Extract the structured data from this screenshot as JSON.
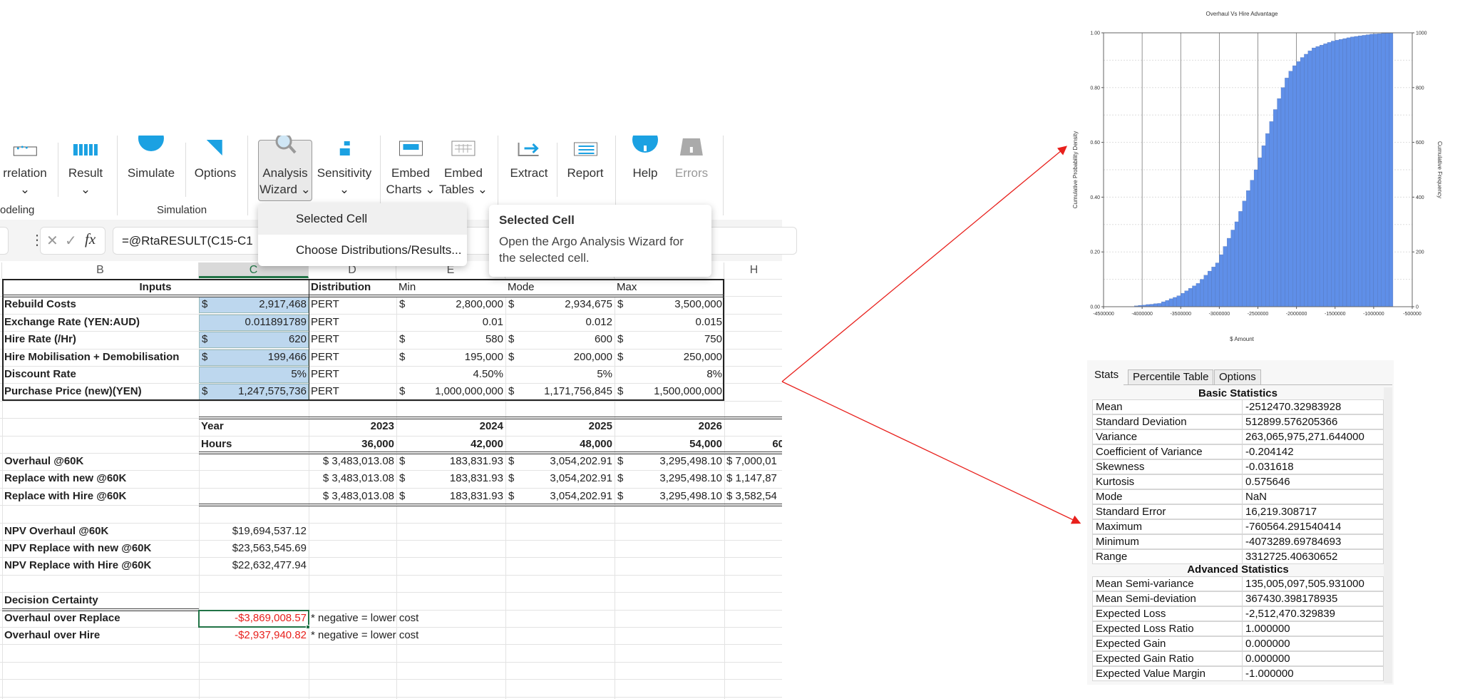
{
  "ribbon": {
    "items": [
      {
        "key": "correlation",
        "l1": "rrelation",
        "l2": "⌄",
        "icon": "correlation-icon"
      },
      {
        "key": "result",
        "l1": "Result",
        "l2": "⌄",
        "icon": "result-bars-icon"
      },
      {
        "key": "simulate",
        "l1": "Simulate",
        "l2": "",
        "icon": "simulate-icon"
      },
      {
        "key": "options",
        "l1": "Options",
        "l2": "",
        "icon": "options-icon"
      },
      {
        "key": "analysis-wizard",
        "l1": "Analysis",
        "l2": "Wizard ⌄",
        "icon": "magnifier-icon"
      },
      {
        "key": "sensitivity",
        "l1": "Sensitivity",
        "l2": "⌄",
        "icon": "sensitivity-icon"
      },
      {
        "key": "embed-charts",
        "l1": "Embed",
        "l2": "Charts ⌄",
        "icon": "embed-chart-icon"
      },
      {
        "key": "embed-tables",
        "l1": "Embed",
        "l2": "Tables ⌄",
        "icon": "embed-table-icon"
      },
      {
        "key": "extract",
        "l1": "Extract",
        "l2": "",
        "icon": "extract-icon"
      },
      {
        "key": "report",
        "l1": "Report",
        "l2": "",
        "icon": "report-icon"
      },
      {
        "key": "help",
        "l1": "Help",
        "l2": "",
        "icon": "help-icon"
      },
      {
        "key": "errors",
        "l1": "Errors",
        "l2": "",
        "icon": "errors-icon",
        "disabled": true
      }
    ],
    "groups": {
      "modeling": "odeling",
      "simulation": "Simulation"
    }
  },
  "formula_bar": {
    "formula": "=@RtaRESULT(C15-C1",
    "fx": "fx",
    "cancel": "✕",
    "enter": "✓"
  },
  "dropdown": {
    "items": [
      "Selected Cell",
      "Choose Distributions/Results..."
    ]
  },
  "tooltip": {
    "title": "Selected Cell",
    "line1": "Open the Argo Analysis Wizard for",
    "line2": "the selected cell."
  },
  "sheet": {
    "columns": [
      "B",
      "C",
      "D",
      "E",
      "H"
    ],
    "selected_column": "C",
    "inputs": {
      "header": {
        "label": "Inputs",
        "distribution": "Distribution",
        "min": "Min",
        "mode": "Mode",
        "max": "Max"
      },
      "rows": [
        {
          "label": "Rebuild Costs",
          "value": [
            "$",
            "2,917,468"
          ],
          "dist": "PERT",
          "min": [
            "$",
            "2,800,000"
          ],
          "mode": [
            "$",
            "2,934,675"
          ],
          "max": [
            "$",
            "3,500,000"
          ]
        },
        {
          "label": "Exchange Rate (YEN:AUD)",
          "value": [
            "",
            "0.011891789"
          ],
          "dist": "PERT",
          "min": [
            "",
            "0.01"
          ],
          "mode": [
            "",
            "0.012"
          ],
          "max": [
            "",
            "0.015"
          ]
        },
        {
          "label": "Hire Rate (/Hr)",
          "value": [
            "$",
            "620"
          ],
          "dist": "PERT",
          "min": [
            "$",
            "580"
          ],
          "mode": [
            "$",
            "600"
          ],
          "max": [
            "$",
            "750"
          ]
        },
        {
          "label": "Hire Mobilisation + Demobilisation",
          "value": [
            "$",
            "199,466"
          ],
          "dist": "PERT",
          "min": [
            "$",
            "195,000"
          ],
          "mode": [
            "$",
            "200,000"
          ],
          "max": [
            "$",
            "250,000"
          ]
        },
        {
          "label": "Discount Rate",
          "value": [
            "",
            "5%"
          ],
          "dist": "PERT",
          "min": [
            "",
            "4.50%"
          ],
          "mode": [
            "",
            "5%"
          ],
          "max": [
            "",
            "8%"
          ]
        },
        {
          "label": "Purchase Price (new)(YEN)",
          "value": [
            "$",
            "1,247,575,736"
          ],
          "dist": "PERT",
          "min": [
            "$",
            "1,000,000,000"
          ],
          "mode": [
            "$",
            "1,171,756,845"
          ],
          "max": [
            "$",
            "1,500,000,000"
          ]
        }
      ]
    },
    "schedule": {
      "year_label": "Year",
      "hours_label": "Hours",
      "years": [
        "2023",
        "2024",
        "2025",
        "2026"
      ],
      "hours": [
        "36,000",
        "42,000",
        "48,000",
        "54,000",
        "60"
      ],
      "rows": [
        {
          "label": "Overhaul @60K",
          "d": "$ 3,483,013.08",
          "e": "183,831.93",
          "f": "3,054,202.91",
          "g": "3,295,498.10",
          "h": "$ 7,000,01"
        },
        {
          "label": "Replace with new @60K",
          "d": "$ 3,483,013.08",
          "e": "183,831.93",
          "f": "3,054,202.91",
          "g": "3,295,498.10",
          "h": "$ 1,147,87"
        },
        {
          "label": "Replace with Hire @60K",
          "d": "$ 3,483,013.08",
          "e": "183,831.93",
          "f": "3,054,202.91",
          "g": "3,295,498.10",
          "h": "$ 3,582,54"
        }
      ],
      "currency": "$"
    },
    "npv": [
      {
        "label": "NPV Overhaul @60K",
        "value": "$19,694,537.12"
      },
      {
        "label": "NPV Replace with new @60K",
        "value": "$23,563,545.69"
      },
      {
        "label": "NPV Replace with Hire @60K",
        "value": "$22,632,477.94"
      }
    ],
    "decision": {
      "title": "Decision Certainty",
      "rows": [
        {
          "label": "Overhaul over Replace",
          "value": "-$3,869,008.57",
          "note": "* negative = lower cost"
        },
        {
          "label": "Overhaul over Hire",
          "value": "-$2,937,940.82",
          "note": "* negative = lower cost"
        }
      ]
    }
  },
  "chart_data": {
    "type": "bar",
    "title": "Overhaul Vs Hire Advantage",
    "xlabel": "$ Amount",
    "ylabel": "Cumulative Probability Density",
    "y2label": "Cumulative Frequency",
    "xlim": [
      -4500000,
      -500000
    ],
    "ylim": [
      0,
      1
    ],
    "y2lim": [
      0,
      1000
    ],
    "xticks": [
      "-4500000",
      "-4000000",
      "-3500000",
      "-3000000",
      "-2500000",
      "-2000000",
      "-1500000",
      "-1000000",
      "-500000"
    ],
    "yticks": [
      "0.00",
      "0.20",
      "0.40",
      "0.60",
      "0.80",
      "1.00"
    ],
    "y2ticks": [
      "0",
      "200",
      "400",
      "600",
      "800",
      "1000"
    ],
    "grid": true,
    "bar_color": "#5f8fe8",
    "x_start": -4100000,
    "bin_width": 50000,
    "cumulative_probability": [
      0.003,
      0.005,
      0.006,
      0.008,
      0.009,
      0.011,
      0.012,
      0.018,
      0.023,
      0.029,
      0.034,
      0.04,
      0.049,
      0.058,
      0.067,
      0.076,
      0.085,
      0.1,
      0.115,
      0.13,
      0.145,
      0.16,
      0.19,
      0.22,
      0.25,
      0.28,
      0.31,
      0.348,
      0.386,
      0.424,
      0.462,
      0.5,
      0.544,
      0.588,
      0.632,
      0.676,
      0.72,
      0.76,
      0.8,
      0.835,
      0.86,
      0.88,
      0.895,
      0.91,
      0.922,
      0.934,
      0.945,
      0.95,
      0.955,
      0.96,
      0.965,
      0.97,
      0.973,
      0.976,
      0.979,
      0.982,
      0.985,
      0.987,
      0.989,
      0.991,
      0.993,
      0.995,
      0.996,
      0.997,
      0.998,
      0.999,
      1.0
    ]
  },
  "stats": {
    "tabs": [
      "Stats",
      "Percentile Table",
      "Options"
    ],
    "active_tab": "Stats",
    "basic_title": "Basic Statistics",
    "basic": [
      [
        "Mean",
        "-2512470.32983928"
      ],
      [
        "Standard Deviation",
        "512899.576205366"
      ],
      [
        "Variance",
        "263,065,975,271.644000"
      ],
      [
        "Coefficient of Variance",
        "-0.204142"
      ],
      [
        "Skewness",
        "-0.031618"
      ],
      [
        "Kurtosis",
        "0.575646"
      ],
      [
        "Mode",
        "NaN"
      ],
      [
        "Standard Error",
        "16,219.308717"
      ],
      [
        "Maximum",
        "-760564.291540414"
      ],
      [
        "Minimum",
        "-4073289.69784693"
      ],
      [
        "Range",
        "3312725.40630652"
      ]
    ],
    "advanced_title": "Advanced Statistics",
    "advanced": [
      [
        "Mean Semi-variance",
        "135,005,097,505.931000"
      ],
      [
        "Mean Semi-deviation",
        "367430.398178935"
      ],
      [
        "Expected Loss",
        "-2,512,470.329839"
      ],
      [
        "Expected Loss Ratio",
        "1.000000"
      ],
      [
        "Expected Gain",
        "0.000000"
      ],
      [
        "Expected Gain Ratio",
        "0.000000"
      ],
      [
        "Expected Value Margin",
        "-1.000000"
      ]
    ]
  },
  "colors": {
    "accent_green": "#217346",
    "input_fill": "#bdd7ee",
    "negative": "#e8201c",
    "arrow": "#e8201c",
    "ribbon_icon_blue": "#1ba1e2"
  }
}
